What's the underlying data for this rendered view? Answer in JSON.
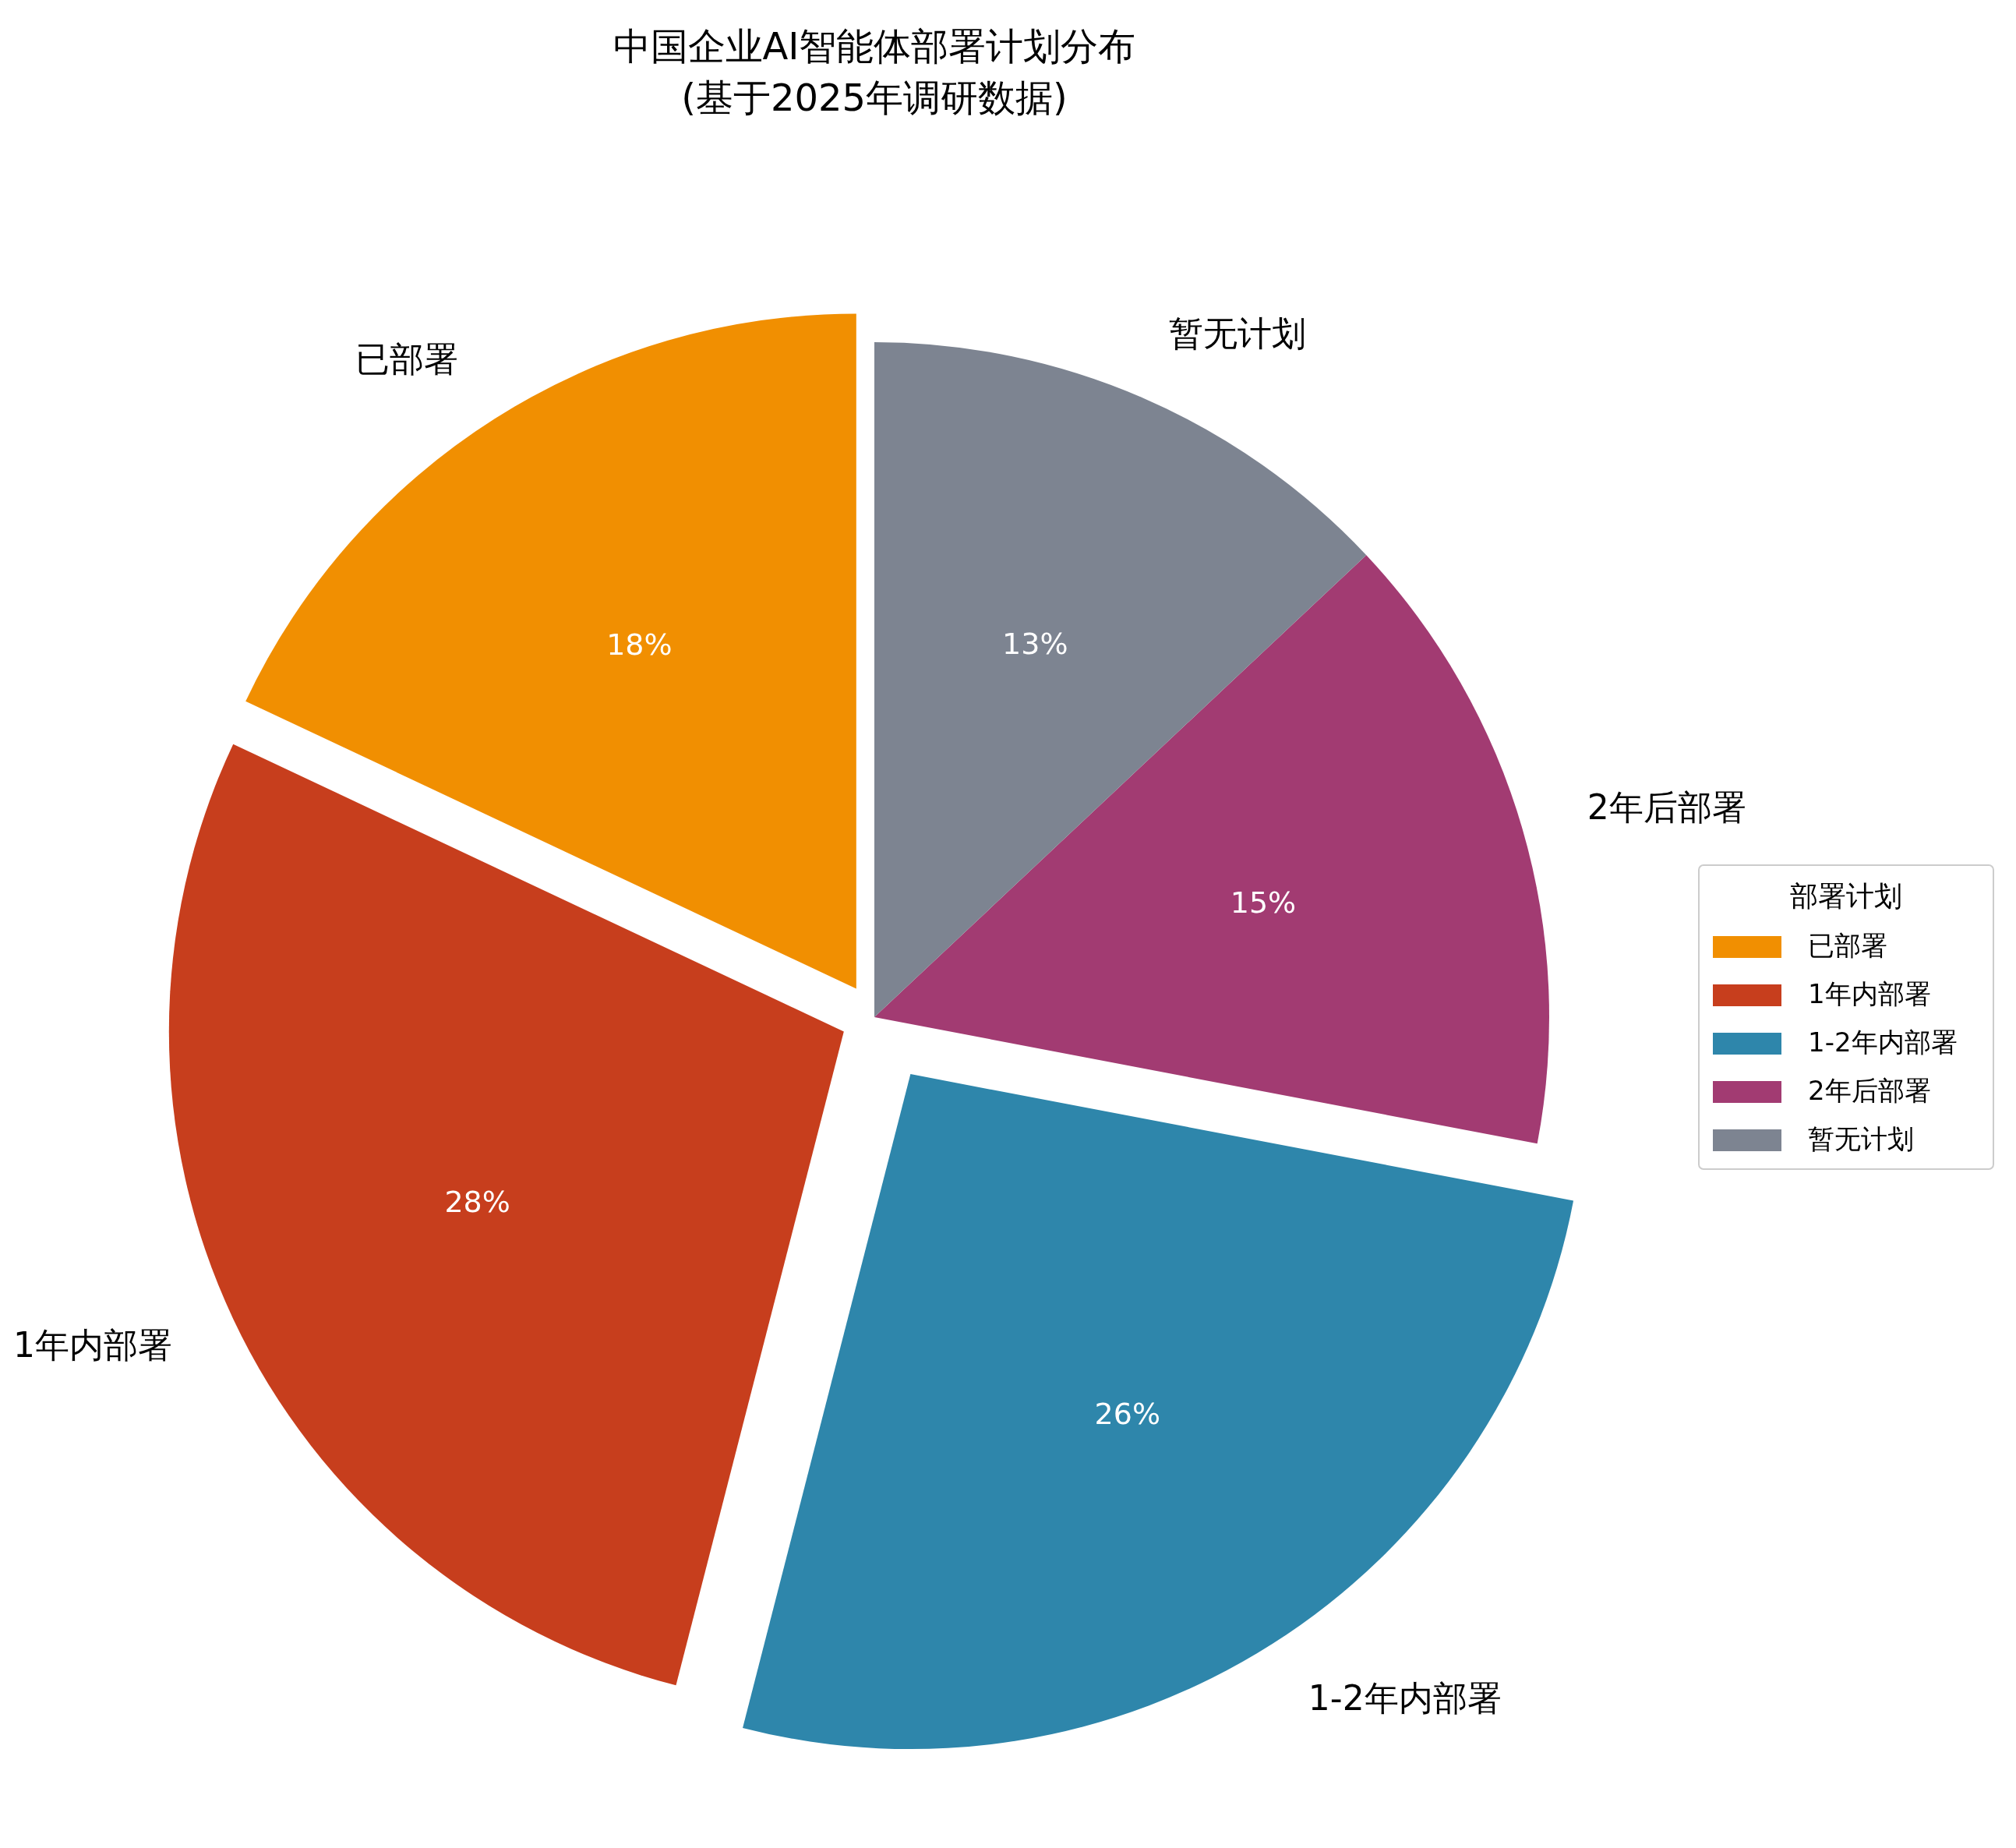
{
  "chart_data": {
    "type": "pie",
    "title": "中国企业AI智能体部署计划分布\n(基于2025年调研数据)",
    "categories": [
      "已部署",
      "1年内部署",
      "1-2年内部署",
      "2年后部署",
      "暂无计划"
    ],
    "values": [
      18,
      28,
      26,
      15,
      13
    ],
    "colors": [
      "#f18f01",
      "#c73e1d",
      "#2e86ab",
      "#a23b72",
      "#7d8491"
    ],
    "value_labels": [
      "18%",
      "28%",
      "26%",
      "15%",
      "13%"
    ],
    "legend_title": "部署计划",
    "legend": "right"
  }
}
